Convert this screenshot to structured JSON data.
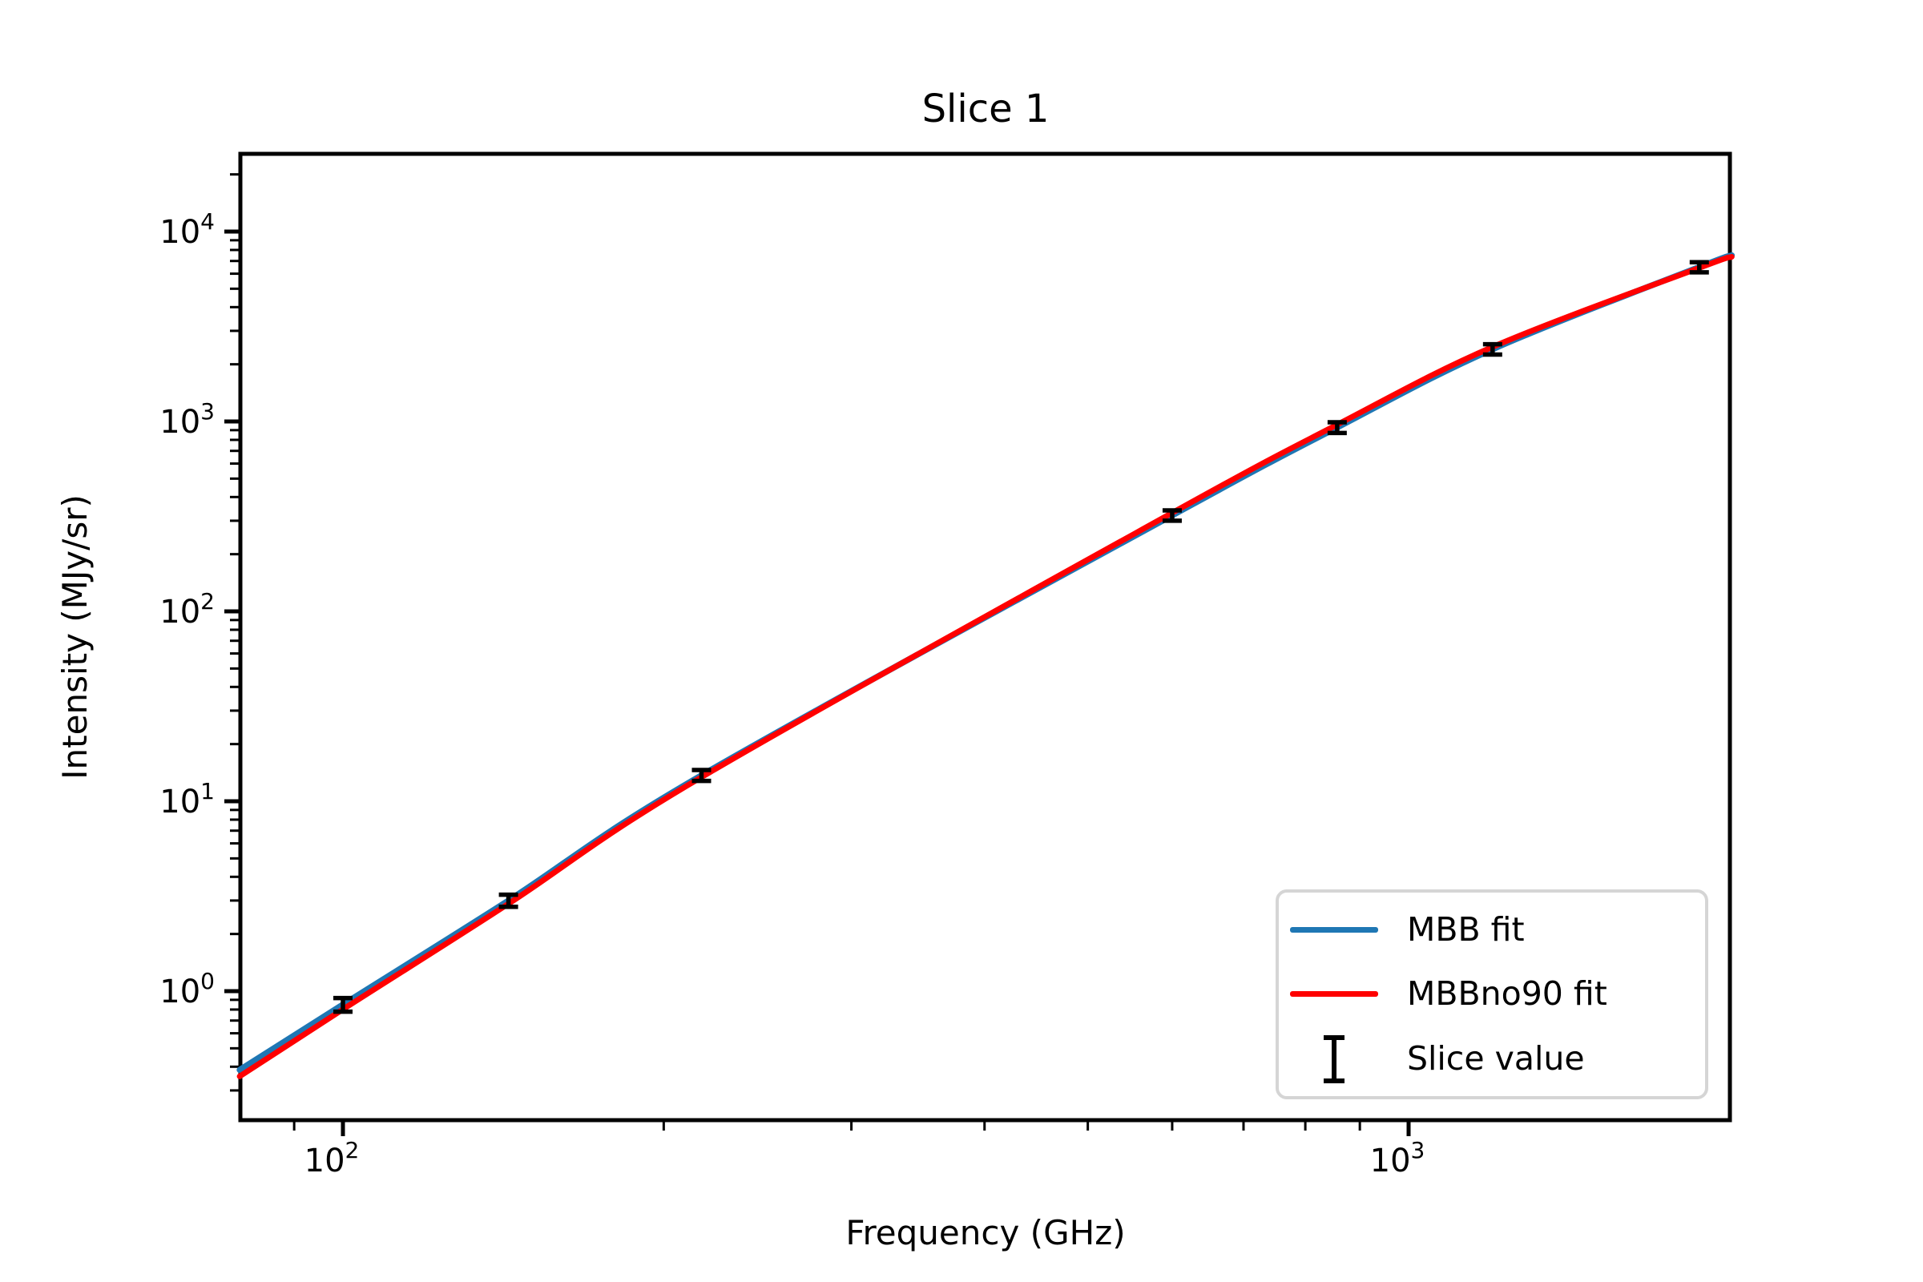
{
  "title": "Slice 1",
  "axes": {
    "xlabel": "Frequency (GHz)",
    "ylabel": "Intensity (MJy/sr)",
    "x_scale": "log",
    "y_scale": "log",
    "x_major_ticks": [
      {
        "base": "10",
        "exponent": "2",
        "value": 100
      },
      {
        "base": "10",
        "exponent": "3",
        "value": 1000
      }
    ],
    "y_major_ticks": [
      {
        "base": "10",
        "exponent": "0",
        "value": 1
      },
      {
        "base": "10",
        "exponent": "1",
        "value": 10
      },
      {
        "base": "10",
        "exponent": "2",
        "value": 100
      },
      {
        "base": "10",
        "exponent": "3",
        "value": 1000
      },
      {
        "base": "10",
        "exponent": "4",
        "value": 10000
      }
    ]
  },
  "legend": {
    "position": "lower right",
    "items": [
      {
        "label": "MBB fit",
        "swatch": "line",
        "color": "#1f77b4"
      },
      {
        "label": "MBBno90 fit",
        "swatch": "line",
        "color": "#ff0000"
      },
      {
        "label": "Slice value",
        "swatch": "errorbar",
        "color": "#000000"
      }
    ]
  },
  "colors": {
    "mbb_fit": "#1f77b4",
    "mbbno90_fit": "#ff0000",
    "data_points": "#000000",
    "spine": "#000000",
    "legend_border": "#d5d5d5"
  },
  "chart_data": {
    "type": "line",
    "title": "Slice 1",
    "xlabel": "Frequency (GHz)",
    "ylabel": "Intensity (MJy/sr)",
    "x_scale": "log",
    "y_scale": "log",
    "xlim": [
      80,
      2010
    ],
    "ylim": [
      0.21,
      26000
    ],
    "grid": false,
    "legend_position": "lower right",
    "series": [
      {
        "name": "MBB fit",
        "kind": "curve",
        "color": "#1f77b4",
        "linewidth": 7.5,
        "x": [
          80,
          100,
          143,
          217,
          600,
          857,
          1199,
          1874,
          2010
        ],
        "y": [
          0.385,
          0.85,
          3.0,
          13.7,
          320,
          930,
          2400,
          6500,
          7500
        ]
      },
      {
        "name": "MBBno90 fit",
        "kind": "curve",
        "color": "#ff0000",
        "linewidth": 7,
        "x": [
          80,
          100,
          143,
          217,
          600,
          857,
          1199,
          1874,
          2010
        ],
        "y": [
          0.356,
          0.802,
          2.885,
          13.4,
          330,
          962,
          2468,
          6440,
          7360
        ]
      },
      {
        "name": "Slice value",
        "kind": "errorbar",
        "color": "#000000",
        "x": [
          100,
          143,
          217,
          600,
          857,
          1199,
          1874
        ],
        "y": [
          0.85,
          3.0,
          13.7,
          320,
          930,
          2400,
          6500
        ],
        "yerr": [
          0.07,
          0.22,
          0.9,
          20,
          60,
          150,
          400
        ]
      }
    ]
  }
}
